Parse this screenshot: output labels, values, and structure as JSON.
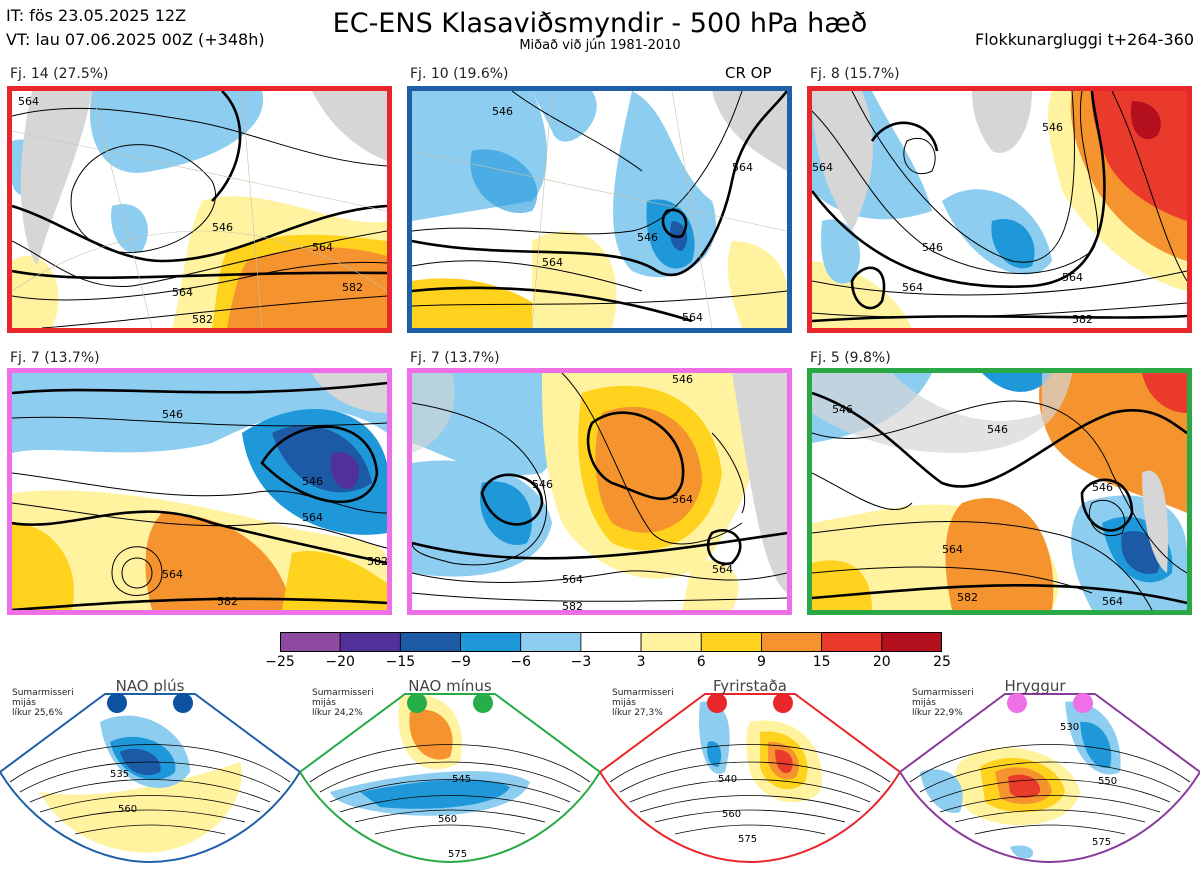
{
  "header": {
    "it_line": "IT: fös 23.05.2025 12Z",
    "vt_line": "VT: lau 07.06.2025 00Z  (+348h)",
    "title": "EC-ENS Klasaviðsmyndir - 500 hPa hæð",
    "subtitle": "Miðað við jún 1981-2010",
    "window": "Flokkunargluggi t+264-360"
  },
  "panels": [
    {
      "label": "Fj. 14 (27.5%)",
      "border": "#e8262b",
      "badge": "",
      "contours": [
        "564",
        "546",
        "564",
        "564",
        "582",
        "582"
      ]
    },
    {
      "label": "Fj. 10 (19.6%)",
      "border": "#1f5fa8",
      "badge": "CR OP",
      "contours": [
        "546",
        "564",
        "546",
        "564",
        "564"
      ]
    },
    {
      "label": "Fj. 8 (15.7%)",
      "border": "#e8262b",
      "badge": "",
      "contours": [
        "546",
        "564",
        "546",
        "564",
        "564",
        "582"
      ]
    },
    {
      "label": "Fj. 7 (13.7%)",
      "border": "#ee6fe6",
      "badge": "",
      "contours": [
        "546",
        "546",
        "564",
        "582",
        "564",
        "582"
      ]
    },
    {
      "label": "Fj. 7 (13.7%)",
      "border": "#ee6fe6",
      "badge": "",
      "contours": [
        "546",
        "546",
        "564",
        "564",
        "564",
        "582"
      ]
    },
    {
      "label": "Fj. 5 (9.8%)",
      "border": "#29a845",
      "badge": "",
      "contours": [
        "546",
        "546",
        "546",
        "564",
        "582",
        "564"
      ]
    }
  ],
  "colorbar": {
    "ticks": [
      "−25",
      "−20",
      "−15",
      "−9",
      "−6",
      "−3",
      "3",
      "6",
      "9",
      "15",
      "20",
      "25"
    ],
    "colors": [
      "#8e4aa0",
      "#51309a",
      "#1c5aa6",
      "#1f98da",
      "#8ccdf0",
      "#ffffff",
      "#fff3a0",
      "#ffd21e",
      "#f5942e",
      "#ea3a2c",
      "#b30f1c"
    ]
  },
  "regimes": [
    {
      "name": "NAO plús",
      "note": [
        "Sumarmisseri",
        "mijás",
        "líkur 25,6%"
      ],
      "border": "#1f5fa8",
      "dot": "#0c52a0",
      "labels": [
        "535",
        "560"
      ]
    },
    {
      "name": "NAO mínus",
      "note": [
        "Sumarmisseri",
        "mijás",
        "líkur 24,2%"
      ],
      "border": "#29a845",
      "dot": "#27ae4a",
      "labels": [
        "545",
        "560",
        "575"
      ]
    },
    {
      "name": "Fyrirstaða",
      "note": [
        "Sumarmisseri",
        "mijás",
        "líkur 27,3%"
      ],
      "border": "#e8262b",
      "dot": "#e8262b",
      "labels": [
        "540",
        "560",
        "575"
      ]
    },
    {
      "name": "Hryggur",
      "note": [
        "Sumarmisseri",
        "mijás",
        "líkur 22,9%"
      ],
      "border": "#8a3a9a",
      "dot": "#ee6fe6",
      "labels": [
        "530",
        "550",
        "575"
      ]
    }
  ]
}
